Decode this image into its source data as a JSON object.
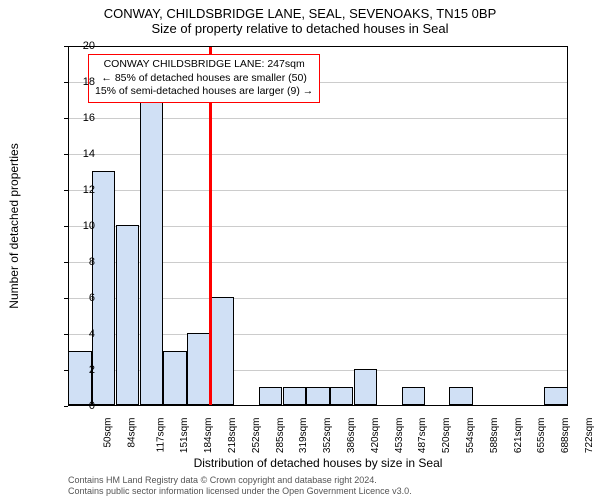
{
  "title_line1": "CONWAY, CHILDSBRIDGE LANE, SEAL, SEVENOAKS, TN15 0BP",
  "title_line2": "Size of property relative to detached houses in Seal",
  "ylabel": "Number of detached properties",
  "xlabel": "Distribution of detached houses by size in Seal",
  "ylim_max": 20,
  "ytick_step": 2,
  "grid_color": "#cccccc",
  "bar_fill": "#d0e0f5",
  "bar_edge": "#000000",
  "highlight_fill": "#ff0000",
  "background": "#ffffff",
  "annotation": {
    "line1": "CONWAY CHILDSBRIDGE LANE: 247sqm",
    "line2": "← 85% of detached houses are smaller (50)",
    "line3": "15% of semi-detached houses are larger (9) →",
    "border_color": "#ff0000"
  },
  "categories": [
    "50sqm",
    "84sqm",
    "117sqm",
    "151sqm",
    "184sqm",
    "218sqm",
    "252sqm",
    "285sqm",
    "319sqm",
    "352sqm",
    "386sqm",
    "420sqm",
    "453sqm",
    "487sqm",
    "520sqm",
    "554sqm",
    "588sqm",
    "621sqm",
    "655sqm",
    "688sqm",
    "722sqm"
  ],
  "values": [
    3,
    13,
    10,
    17,
    3,
    4,
    6,
    0,
    1,
    1,
    1,
    1,
    2,
    0,
    1,
    0,
    1,
    0,
    0,
    0,
    1
  ],
  "highlight_after_index": 5,
  "footer_line1": "Contains HM Land Registry data © Crown copyright and database right 2024.",
  "footer_line2": "Contains public sector information licensed under the Open Government Licence v3.0."
}
